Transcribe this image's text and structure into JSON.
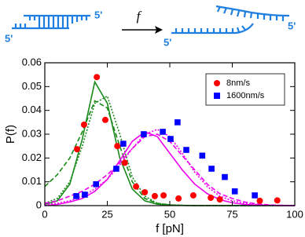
{
  "diagram": {
    "labels": [
      "5'",
      "5'",
      "5'",
      "5'"
    ],
    "force": "f"
  },
  "chart_data": {
    "type": "scatter",
    "xlabel": "f [pN]",
    "ylabel": "P(f)",
    "xlim": [
      0,
      100
    ],
    "ylim": [
      0,
      0.06
    ],
    "xticks": [
      0,
      25,
      50,
      75,
      100
    ],
    "yticks": [
      0,
      0.01,
      0.02,
      0.03,
      0.04,
      0.05,
      0.06
    ],
    "legend": "upper right",
    "series": [
      {
        "name": "8nm/s",
        "color": "#ff0000",
        "marker": "circle",
        "x": [
          12.9,
          15.7,
          20.8,
          24.2,
          29,
          32,
          36.5,
          40,
          44,
          47.5,
          53.5,
          59.4,
          66.4,
          70,
          86,
          93
        ],
        "values": [
          0.0237,
          0.034,
          0.054,
          0.036,
          0.025,
          0.018,
          0.008,
          0.0056,
          0.004,
          0.0043,
          0.003,
          0.0043,
          0.0033,
          0.0026,
          0.002,
          0.0022
        ]
      },
      {
        "name": "1600nm/s",
        "color": "#0000ff",
        "marker": "square",
        "x": [
          12.6,
          16,
          20.5,
          28.6,
          31.4,
          39.6,
          47.2,
          50.3,
          53.1,
          56.6,
          63,
          66.7,
          72,
          76,
          84
        ],
        "values": [
          0.004,
          0.0046,
          0.009,
          0.0155,
          0.026,
          0.03,
          0.031,
          0.028,
          0.035,
          0.0234,
          0.021,
          0.0155,
          0.012,
          0.006,
          0.0043
        ]
      }
    ],
    "curve_x": [
      0,
      5,
      10,
      15,
      20,
      25,
      30,
      35,
      40,
      45,
      50,
      55,
      60,
      65,
      70,
      75,
      80,
      85,
      90,
      95,
      100
    ],
    "curves": [
      {
        "color": "#1a8a1a",
        "dash": "none",
        "values": [
          0.0005,
          0.002,
          0.009,
          0.028,
          0.052,
          0.043,
          0.02,
          0.007,
          0.002,
          0.0006,
          0.0002,
          0.0001,
          0,
          0,
          0,
          0,
          0,
          0,
          0,
          0,
          0
        ]
      },
      {
        "color": "#1a8a1a",
        "dash": "6 3",
        "values": [
          0.008,
          0.013,
          0.02,
          0.031,
          0.044,
          0.041,
          0.025,
          0.01,
          0.003,
          0.001,
          0.0003,
          0.0001,
          0,
          0,
          0,
          0,
          0,
          0,
          0,
          0,
          0
        ]
      },
      {
        "color": "#1a8a1a",
        "dash": "2 2",
        "values": [
          0.001,
          0.003,
          0.01,
          0.025,
          0.043,
          0.046,
          0.03,
          0.012,
          0.004,
          0.001,
          0.0003,
          0.0001,
          0,
          0,
          0,
          0,
          0,
          0,
          0,
          0,
          0
        ]
      },
      {
        "color": "#ee00ee",
        "dash": "none",
        "values": [
          0,
          0.0005,
          0.0015,
          0.003,
          0.006,
          0.011,
          0.019,
          0.027,
          0.031,
          0.029,
          0.022,
          0.015,
          0.009,
          0.005,
          0.0025,
          0.0012,
          0.0005,
          0.0002,
          0.0001,
          0,
          0
        ]
      },
      {
        "color": "#ee00ee",
        "dash": "6 3",
        "values": [
          0.001,
          0.002,
          0.004,
          0.006,
          0.009,
          0.013,
          0.018,
          0.024,
          0.029,
          0.03,
          0.027,
          0.021,
          0.015,
          0.009,
          0.005,
          0.003,
          0.0015,
          0.0007,
          0.0003,
          0.0001,
          0
        ]
      },
      {
        "color": "#ee00ee",
        "dash": "2 2",
        "values": [
          0.0005,
          0.001,
          0.002,
          0.004,
          0.007,
          0.011,
          0.017,
          0.024,
          0.03,
          0.032,
          0.029,
          0.022,
          0.014,
          0.008,
          0.004,
          0.002,
          0.001,
          0.0005,
          0.0002,
          0.0001,
          0
        ]
      }
    ]
  }
}
